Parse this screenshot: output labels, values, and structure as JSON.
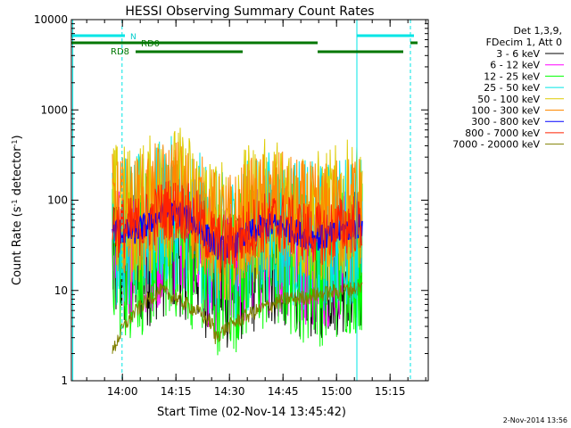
{
  "chart_data": {
    "type": "line",
    "title": "HESSI Observing Summary Count Rates",
    "xlabel": "Start Time (02-Nov-14 13:45:42)",
    "ylabel_html": "Count Rate (s<tspan baseline-shift='super' font-size='8'>-1</tspan> detector<tspan baseline-shift='super' font-size='8'>-1</tspan>)",
    "ylabel_parts": [
      "Count Rate (s",
      "-1",
      " detector",
      "-1",
      ")"
    ],
    "y_scale": "log",
    "ylim": [
      1,
      10000
    ],
    "xlim_minutes_after_start": [
      0,
      100
    ],
    "x_ticks": [
      "14:00",
      "14:15",
      "14:30",
      "14:45",
      "15:00",
      "15:15"
    ],
    "y_ticks": [
      "1",
      "10",
      "100",
      "1000",
      "10000"
    ],
    "legend_position": "right",
    "legend_header": [
      "Det 1,3,9,",
      "FDecim 1, Att 0"
    ],
    "series": [
      {
        "name": "3 - 6 keV",
        "color": "#000000",
        "level": 20,
        "spread": 1.6
      },
      {
        "name": "6 - 12 keV",
        "color": "#ff00ff",
        "level": 25,
        "spread": 1.5
      },
      {
        "name": "12 - 25 keV",
        "color": "#00ff00",
        "level": 22,
        "spread": 1.8
      },
      {
        "name": "25 - 50 keV",
        "color": "#00e5e5",
        "level": 45,
        "spread": 1.7
      },
      {
        "name": "50 - 100 keV",
        "color": "#ddcc00",
        "level": 70,
        "spread": 1.6
      },
      {
        "name": "100 - 300 keV",
        "color": "#ff8800",
        "level": 70,
        "spread": 1.3
      },
      {
        "name": "300 - 800 keV",
        "color": "#0000ff",
        "level": 45,
        "spread": 0.3
      },
      {
        "name": "800 - 7000 keV",
        "color": "#ff2200",
        "level": 50,
        "spread": 0.7
      },
      {
        "name": "7000 - 20000 keV",
        "color": "#808000",
        "level": 5,
        "spread": 0.4
      }
    ],
    "annotations": {
      "rd_labels": [
        "RD0",
        "RD8"
      ],
      "n_label": "N"
    }
  },
  "footer": {
    "timestamp": "2-Nov-2014 13:56"
  }
}
